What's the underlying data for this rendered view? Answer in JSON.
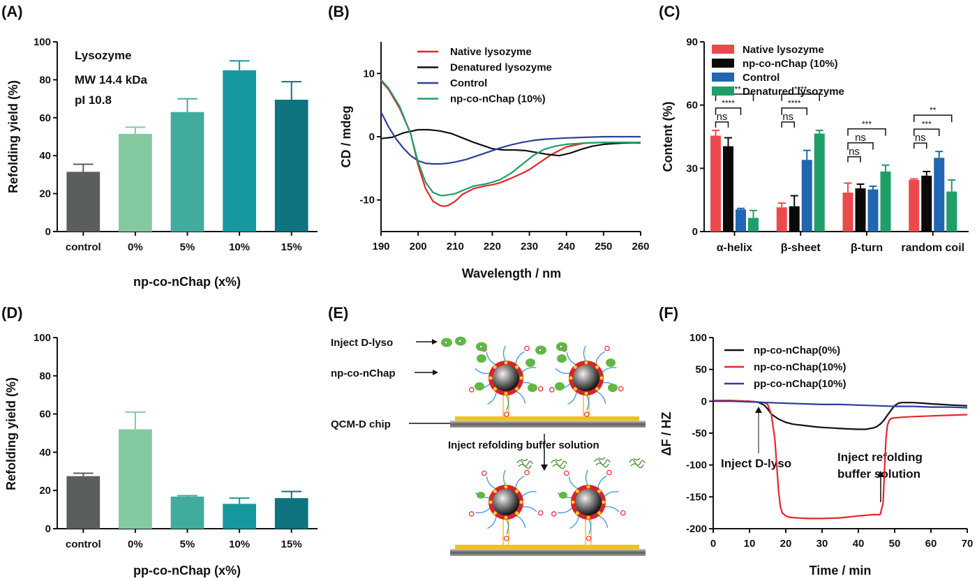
{
  "panel_labels": [
    "(A)",
    "(B)",
    "(C)",
    "(D)",
    "(E)",
    "(F)"
  ],
  "chart_data": [
    {
      "panel": "(A)",
      "type": "bar",
      "xlabel": "np-co-nChap (x%)",
      "ylabel": "Refolding yield (%)",
      "ylim": [
        0,
        100
      ],
      "yticks": [
        "0",
        "20",
        "40",
        "60",
        "80",
        "100"
      ],
      "categories": [
        "control",
        "0%",
        "5%",
        "10%",
        "15%"
      ],
      "values": [
        31.5,
        51.5,
        63,
        85,
        69.5
      ],
      "errors": [
        4,
        3.5,
        7,
        5,
        9.5
      ],
      "bar_colors": [
        "#5a5e5d",
        "#85c9a0",
        "#40ac9d",
        "#17989e",
        "#0f727f"
      ],
      "annotations": [
        "Lysozyme",
        "MW 14.4 kDa",
        "pI 10.8"
      ]
    },
    {
      "panel": "(B)",
      "type": "line",
      "xlabel": "Wavelength / nm",
      "ylabel": "CD / mdeg",
      "xlim": [
        190,
        260
      ],
      "ylim": [
        -15,
        15
      ],
      "xticks": [
        "190",
        "200",
        "210",
        "220",
        "230",
        "240",
        "250",
        "260"
      ],
      "yticks": [
        "-10",
        "0",
        "10"
      ],
      "series": [
        {
          "name": "Native lysozyme",
          "color": "#e8252b",
          "x": [
            190,
            192,
            195,
            198,
            200,
            202,
            204,
            206,
            207,
            208,
            210,
            212,
            215,
            218,
            220,
            222,
            225,
            228,
            230,
            233,
            236,
            240,
            245,
            250,
            255,
            260
          ],
          "y": [
            8.8,
            7.5,
            4.5,
            0.5,
            -4.5,
            -8.2,
            -10.2,
            -10.9,
            -11.0,
            -10.9,
            -10.2,
            -9.1,
            -8.2,
            -7.8,
            -7.6,
            -7.3,
            -6.6,
            -5.8,
            -5.2,
            -4.0,
            -2.8,
            -1.6,
            -1.0,
            -0.9,
            -0.9,
            -1.0
          ]
        },
        {
          "name": "Denatured lysozyme",
          "color": "#111111",
          "x": [
            190,
            193,
            196,
            200,
            203,
            206,
            209,
            212,
            215,
            218,
            220,
            223,
            226,
            229,
            232,
            235,
            238,
            241,
            244,
            247,
            250,
            255,
            260
          ],
          "y": [
            -0.3,
            -0.1,
            0.6,
            1.1,
            1.1,
            0.9,
            0.5,
            -0.2,
            -0.9,
            -1.5,
            -1.9,
            -2.1,
            -2.1,
            -2.2,
            -2.5,
            -2.8,
            -3.0,
            -2.6,
            -2.0,
            -1.5,
            -1.2,
            -1.0,
            -0.9
          ]
        },
        {
          "name": "Control",
          "color": "#2f3f9e",
          "x": [
            190,
            192,
            194,
            196,
            198,
            200,
            202,
            204,
            206,
            208,
            210,
            213,
            216,
            219,
            222,
            225,
            228,
            231,
            234,
            237,
            240,
            245,
            250,
            255,
            260
          ],
          "y": [
            3.9,
            1.6,
            -0.3,
            -1.8,
            -3.0,
            -3.8,
            -4.2,
            -4.3,
            -4.3,
            -4.2,
            -4.0,
            -3.6,
            -3.0,
            -2.4,
            -1.8,
            -1.3,
            -0.9,
            -0.6,
            -0.4,
            -0.3,
            -0.2,
            -0.1,
            0.0,
            0.0,
            0.0
          ]
        },
        {
          "name": "np-co-nChap (10%)",
          "color": "#1f9e6a",
          "x": [
            190,
            192,
            195,
            198,
            200,
            202,
            204,
            206,
            207,
            208,
            210,
            212,
            215,
            218,
            220,
            222,
            225,
            228,
            231,
            234,
            237,
            240,
            245,
            250,
            255,
            260
          ],
          "y": [
            9.0,
            7.7,
            4.8,
            0.4,
            -4.0,
            -7.2,
            -8.8,
            -9.3,
            -9.3,
            -9.2,
            -9.0,
            -8.5,
            -7.8,
            -7.5,
            -7.2,
            -6.8,
            -5.8,
            -4.4,
            -3.0,
            -2.0,
            -1.5,
            -1.2,
            -1.0,
            -0.9,
            -0.9,
            -0.9
          ]
        }
      ]
    },
    {
      "panel": "(C)",
      "type": "bar",
      "xlabel": "",
      "ylabel": "Content (%)",
      "ylim": [
        0,
        90
      ],
      "yticks": [
        "0",
        "30",
        "60",
        "90"
      ],
      "categories": [
        "α-helix",
        "β-sheet",
        "β-turn",
        "random coil"
      ],
      "series": [
        {
          "name": "Native lysozyme",
          "color": "#ea4a4c",
          "values": [
            45.5,
            11.5,
            18.5,
            24.5
          ],
          "errors": [
            2.5,
            2,
            4.5,
            0.5
          ]
        },
        {
          "name": "np-co-nChap (10%)",
          "color": "#0a0a0a",
          "values": [
            40.5,
            12,
            20.5,
            26.5
          ],
          "errors": [
            4,
            5,
            2,
            2
          ]
        },
        {
          "name": "Control",
          "color": "#2166b3",
          "values": [
            10.5,
            34,
            20,
            35
          ],
          "errors": [
            0.5,
            4.5,
            1.5,
            3
          ]
        },
        {
          "name": "Denatured lysozyme",
          "color": "#1f9e6a",
          "values": [
            6.5,
            46.5,
            28.5,
            19
          ],
          "errors": [
            3.5,
            1.5,
            3,
            5.5
          ]
        }
      ],
      "significance": [
        {
          "group": "α-helix",
          "labels": [
            "ns",
            "****",
            "****"
          ]
        },
        {
          "group": "β-sheet",
          "labels": [
            "ns",
            "****",
            "****"
          ]
        },
        {
          "group": "β-turn",
          "labels": [
            "ns",
            "ns",
            "***"
          ]
        },
        {
          "group": "random coil",
          "labels": [
            "ns",
            "***",
            "**"
          ]
        }
      ]
    },
    {
      "panel": "(D)",
      "type": "bar",
      "xlabel": "pp-co-nChap (x%)",
      "ylabel": "Refolding yield (%)",
      "ylim": [
        0,
        100
      ],
      "yticks": [
        "0",
        "20",
        "40",
        "60",
        "80",
        "100"
      ],
      "categories": [
        "control",
        "0%",
        "5%",
        "10%",
        "15%"
      ],
      "values": [
        27.5,
        52,
        16.8,
        13,
        16
      ],
      "errors": [
        1.5,
        9,
        0.5,
        3,
        3.5
      ],
      "bar_colors": [
        "#5a5e5d",
        "#85c9a0",
        "#40ac9d",
        "#17989e",
        "#0f727f"
      ]
    },
    {
      "panel": "(F)",
      "type": "line",
      "xlabel": "Time / min",
      "ylabel": "ΔF / HZ",
      "xlim": [
        0,
        70
      ],
      "ylim": [
        -200,
        100
      ],
      "xticks": [
        "0",
        "10",
        "20",
        "30",
        "40",
        "50",
        "60",
        "70"
      ],
      "yticks": [
        "100",
        "50",
        "0",
        "-50",
        "-100",
        "-150",
        "-200"
      ],
      "series": [
        {
          "name": "np-co-nChap(0%)",
          "color": "#111111",
          "x": [
            0,
            5,
            10,
            12,
            13,
            14,
            15,
            16,
            18,
            20,
            22,
            25,
            28,
            30,
            33,
            36,
            40,
            42,
            44,
            45,
            46,
            47,
            48,
            49,
            50,
            51,
            52,
            55,
            58,
            60,
            63,
            66,
            70
          ],
          "y": [
            1,
            1,
            0,
            -1,
            -3,
            -6,
            -12,
            -20,
            -28,
            -33,
            -36,
            -38,
            -40,
            -41,
            -42,
            -43,
            -44,
            -44,
            -42,
            -40,
            -36,
            -30,
            -22,
            -14,
            -7,
            -3,
            -2,
            -2,
            -3,
            -4,
            -5,
            -6,
            -7
          ]
        },
        {
          "name": "np-co-nChap(10%)",
          "color": "#e8252b",
          "x": [
            0,
            5,
            10,
            14,
            15,
            16,
            17,
            17.5,
            18,
            18.5,
            19,
            20,
            21,
            23,
            26,
            30,
            35,
            40,
            44,
            46,
            46.8,
            47.2,
            47.6,
            48,
            48.5,
            49,
            50,
            52,
            55,
            60,
            65,
            70
          ],
          "y": [
            1,
            1,
            0,
            -2,
            -5,
            -20,
            -60,
            -100,
            -140,
            -165,
            -175,
            -180,
            -182,
            -183,
            -184,
            -184,
            -183,
            -180,
            -178,
            -178,
            -160,
            -110,
            -60,
            -38,
            -30,
            -27,
            -26,
            -25,
            -24,
            -23,
            -22,
            -21
          ]
        },
        {
          "name": "pp-co-nChap(10%)",
          "color": "#2f3f9e",
          "x": [
            0,
            5,
            10,
            15,
            20,
            25,
            30,
            35,
            40,
            45,
            50,
            55,
            60,
            65,
            70
          ],
          "y": [
            0,
            0,
            -1,
            -2,
            -3,
            -4,
            -5,
            -5,
            -6,
            -7,
            -8,
            -8,
            -9,
            -9,
            -10
          ]
        }
      ],
      "annotations": [
        "Inject D-lyso",
        "Inject refolding",
        "buffer solution"
      ]
    }
  ],
  "schematic": {
    "panel": "(E)",
    "labels": [
      "Inject D-lyso",
      "np-co-nChap",
      "QCM-D chip"
    ],
    "step_label": "Inject refolding buffer solution"
  }
}
